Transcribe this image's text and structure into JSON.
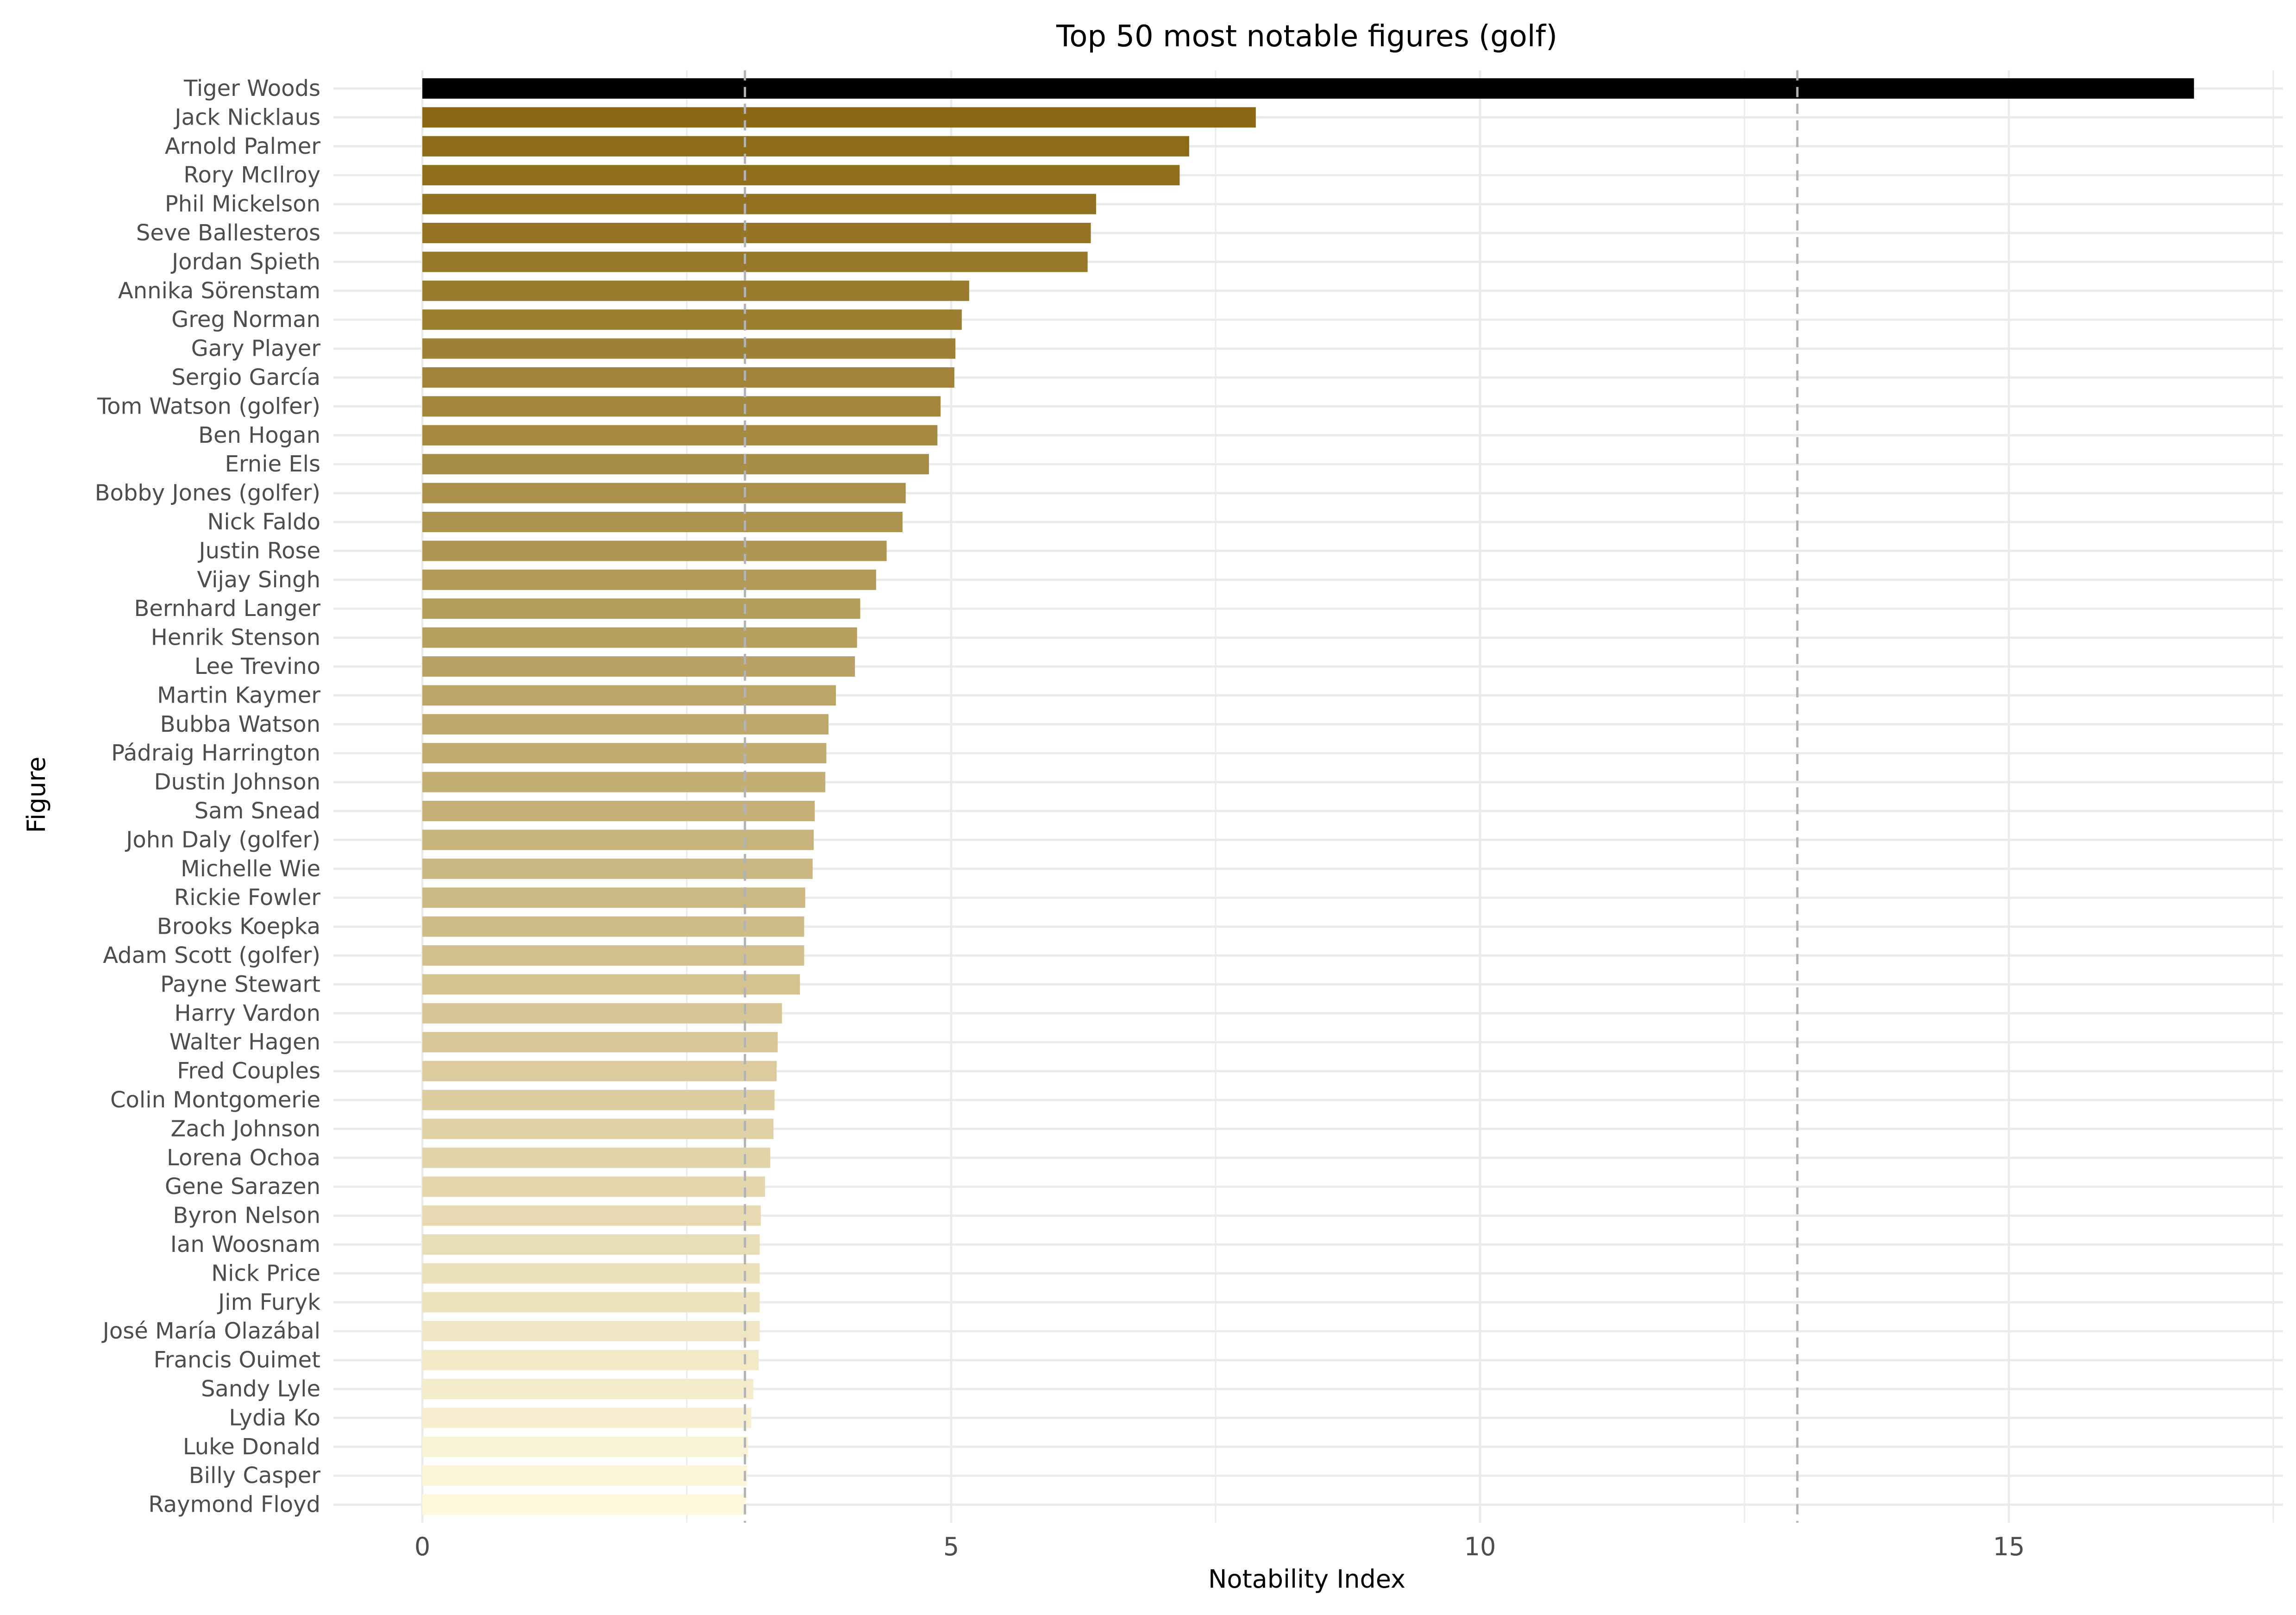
{
  "chart_data": {
    "type": "bar",
    "orientation": "horizontal",
    "title": "Top 50 most notable figures (golf)",
    "xlabel": "Notability Index",
    "ylabel": "Figure",
    "xlim": [
      0,
      17.5
    ],
    "x_ticks": [
      0,
      5,
      10,
      15
    ],
    "x_tick_labels": [
      "0",
      "5",
      "10",
      "15"
    ],
    "reference_lines": [
      3.05,
      13.0
    ],
    "grid": true,
    "legend": "none",
    "colors": {
      "top_bar": "#000000",
      "gradient_dark": "#8b6914",
      "gradient_light": "#fff8dc",
      "grid": "#ebebeb",
      "reference_line": "#b3b3b3"
    },
    "categories": [
      "Tiger Woods",
      "Jack Nicklaus",
      "Arnold Palmer",
      "Rory McIlroy",
      "Phil Mickelson",
      "Seve Ballesteros",
      "Jordan Spieth",
      "Annika Sörenstam",
      "Greg Norman",
      "Gary Player",
      "Sergio García",
      "Tom Watson (golfer)",
      "Ben Hogan",
      "Ernie Els",
      "Bobby Jones (golfer)",
      "Nick Faldo",
      "Justin Rose",
      "Vijay Singh",
      "Bernhard Langer",
      "Henrik Stenson",
      "Lee Trevino",
      "Martin Kaymer",
      "Bubba Watson",
      "Pádraig Harrington",
      "Dustin Johnson",
      "Sam Snead",
      "John Daly (golfer)",
      "Michelle Wie",
      "Rickie Fowler",
      "Brooks Koepka",
      "Adam Scott (golfer)",
      "Payne Stewart",
      "Harry Vardon",
      "Walter Hagen",
      "Fred Couples",
      "Colin Montgomerie",
      "Zach Johnson",
      "Lorena Ochoa",
      "Gene Sarazen",
      "Byron Nelson",
      "Ian Woosnam",
      "Nick Price",
      "Jim Furyk",
      "José María Olazábal",
      "Francis Ouimet",
      "Sandy Lyle",
      "Lydia Ko",
      "Luke Donald",
      "Billy Casper",
      "Raymond Floyd"
    ],
    "values": [
      16.75,
      7.88,
      7.25,
      7.16,
      6.37,
      6.32,
      6.29,
      5.17,
      5.1,
      5.04,
      5.03,
      4.9,
      4.87,
      4.79,
      4.57,
      4.54,
      4.39,
      4.29,
      4.14,
      4.11,
      4.09,
      3.91,
      3.84,
      3.82,
      3.81,
      3.71,
      3.7,
      3.69,
      3.62,
      3.61,
      3.61,
      3.57,
      3.4,
      3.36,
      3.35,
      3.33,
      3.32,
      3.29,
      3.24,
      3.2,
      3.19,
      3.19,
      3.19,
      3.19,
      3.18,
      3.13,
      3.11,
      3.08,
      3.07,
      3.06
    ]
  }
}
